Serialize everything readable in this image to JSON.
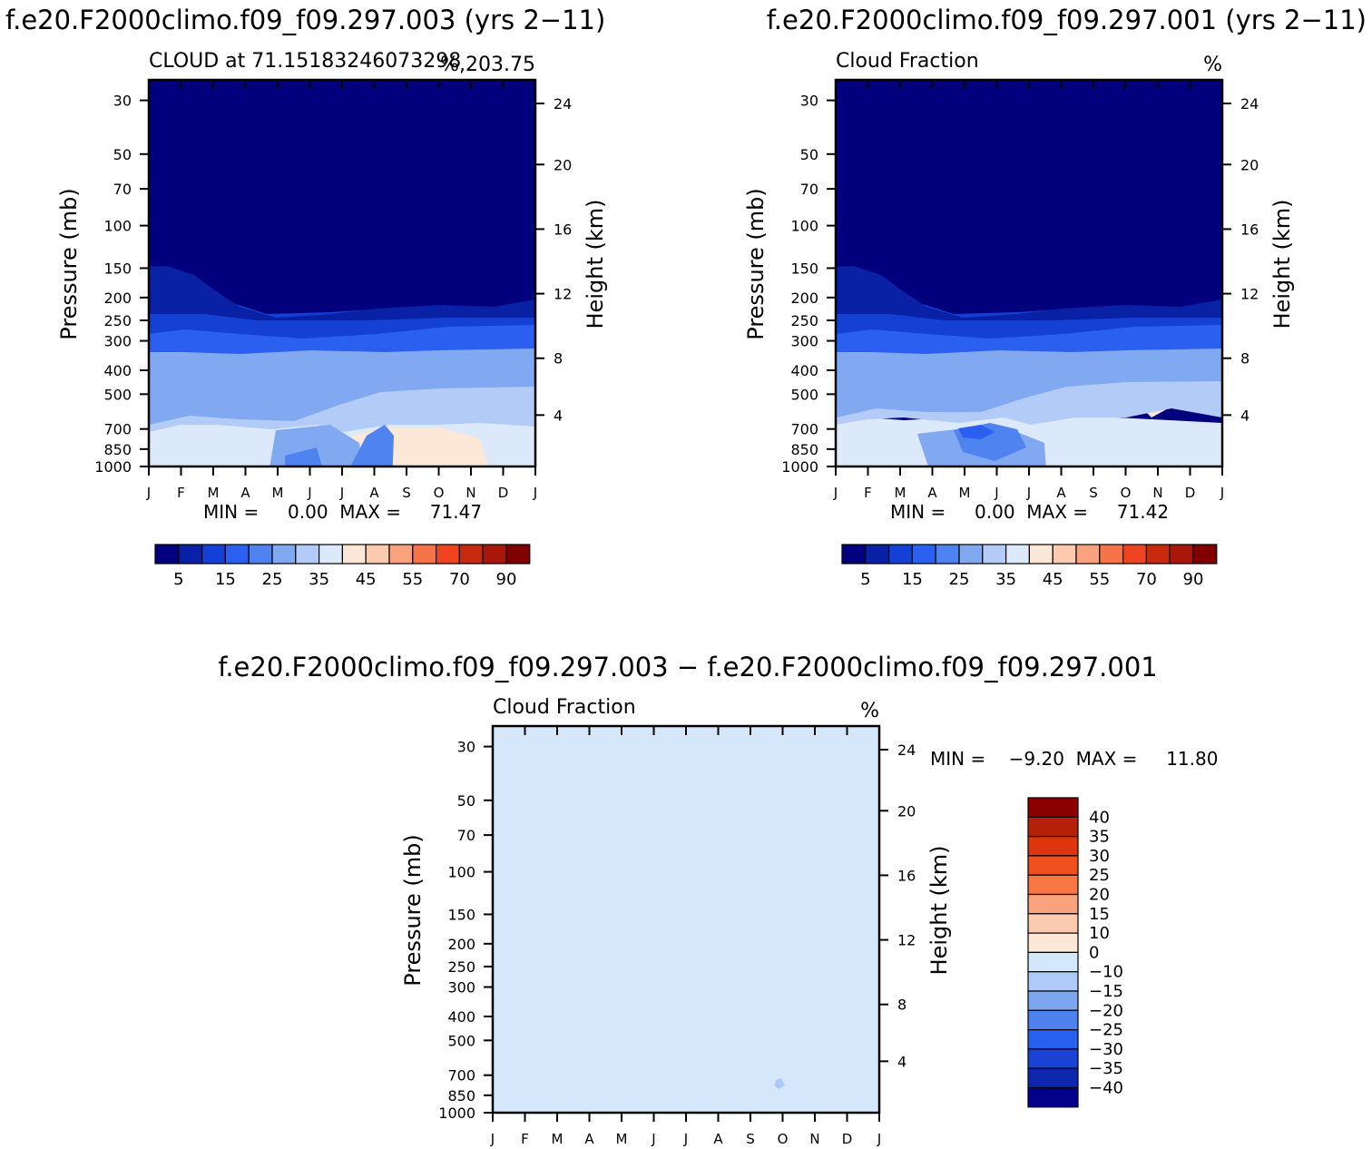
{
  "cases": [
    {
      "header": "f.e20.F2000climo.f09_f09.297.003 (yrs 2−11)",
      "left_string": "CLOUD at 71.15183246073298",
      "center_string": "",
      "right_string": "%,203.75",
      "min_max": "MIN =     0.00  MAX =     71.47"
    },
    {
      "header": "f.e20.F2000climo.f09_f09.297.001 (yrs 2−11)",
      "left_string": "Cloud Fraction",
      "center_string": "",
      "right_string": "%",
      "min_max": "MIN =     0.00  MAX =     71.42"
    }
  ],
  "difference": {
    "header": "f.e20.F2000climo.f09_f09.297.003 − f.e20.F2000climo.f09_f09.297.001",
    "left_string": "Cloud Fraction",
    "right_string": "%",
    "min_max": "MIN =    −9.20  MAX =     11.80"
  },
  "axes": {
    "ylabel_left": "Pressure  (mb)",
    "ylabel_right": "Height  (km)",
    "pressure_ticks": [
      30,
      50,
      70,
      100,
      150,
      200,
      250,
      300,
      400,
      500,
      700,
      850,
      1000
    ],
    "height_ticks": [
      4,
      8,
      12,
      16,
      20,
      24
    ],
    "months": [
      "J",
      "F",
      "M",
      "A",
      "M",
      "J",
      "J",
      "A",
      "S",
      "O",
      "N",
      "D",
      "J"
    ]
  },
  "colorbars": {
    "case_labels": [
      "5",
      "15",
      "25",
      "35",
      "45",
      "55",
      "70",
      "90"
    ],
    "case_colors": [
      "#03007e",
      "#0921a4",
      "#1540d4",
      "#2a5ff0",
      "#4f83ef",
      "#80a9f1",
      "#b3cbf7",
      "#dce9fb",
      "#fde7d7",
      "#fccbaf",
      "#faa27e",
      "#f5744a",
      "#ec4520",
      "#c62b10",
      "#a8180a",
      "#800000"
    ],
    "diff_labels": [
      "40",
      "35",
      "30",
      "25",
      "20",
      "15",
      "10",
      "0",
      "−10",
      "−15",
      "−20",
      "−25",
      "−30",
      "−35",
      "−40"
    ],
    "diff_colors": [
      "#8b0000",
      "#b52008",
      "#dc360e",
      "#f04f20",
      "#f87844",
      "#faa27e",
      "#fccbaf",
      "#fde7d7",
      "#d4e7fb",
      "#b0caf7",
      "#7ea6f0",
      "#4f82ef",
      "#2660ec",
      "#1a43d6",
      "#0c26ae",
      "#03008a"
    ]
  },
  "chart_data": [
    {
      "type": "heatmap",
      "title": "CLOUD at 71.15183246073298",
      "xlabel": "",
      "ylabel": "Pressure  (mb)",
      "ylabel_right": "Height  (km)",
      "x": [
        "J",
        "F",
        "M",
        "A",
        "M",
        "J",
        "J",
        "A",
        "S",
        "O",
        "N",
        "D",
        "J"
      ],
      "levels": [
        5,
        10,
        15,
        20,
        25,
        30,
        35,
        40,
        45,
        50,
        55,
        60,
        70,
        80,
        90
      ],
      "value_range": [
        0.0,
        71.47
      ],
      "units": "%",
      "ylim": [
        1000,
        20
      ],
      "y_scale": "log"
    },
    {
      "type": "heatmap",
      "title": "Cloud Fraction",
      "xlabel": "",
      "ylabel": "Pressure  (mb)",
      "ylabel_right": "Height  (km)",
      "x": [
        "J",
        "F",
        "M",
        "A",
        "M",
        "J",
        "J",
        "A",
        "S",
        "O",
        "N",
        "D",
        "J"
      ],
      "levels": [
        5,
        10,
        15,
        20,
        25,
        30,
        35,
        40,
        45,
        50,
        55,
        60,
        70,
        80,
        90
      ],
      "value_range": [
        0.0,
        71.42
      ],
      "units": "%",
      "ylim": [
        1000,
        20
      ],
      "y_scale": "log"
    },
    {
      "type": "heatmap",
      "title": "Cloud Fraction",
      "xlabel": "",
      "ylabel": "Pressure  (mb)",
      "ylabel_right": "Height  (km)",
      "x": [
        "J",
        "F",
        "M",
        "A",
        "M",
        "J",
        "J",
        "A",
        "S",
        "O",
        "N",
        "D",
        "J"
      ],
      "levels": [
        -40,
        -35,
        -30,
        -25,
        -20,
        -15,
        -10,
        0,
        10,
        15,
        20,
        25,
        30,
        35,
        40
      ],
      "value_range": [
        -9.2,
        11.8
      ],
      "units": "%",
      "ylim": [
        1000,
        20
      ],
      "y_scale": "log"
    }
  ]
}
